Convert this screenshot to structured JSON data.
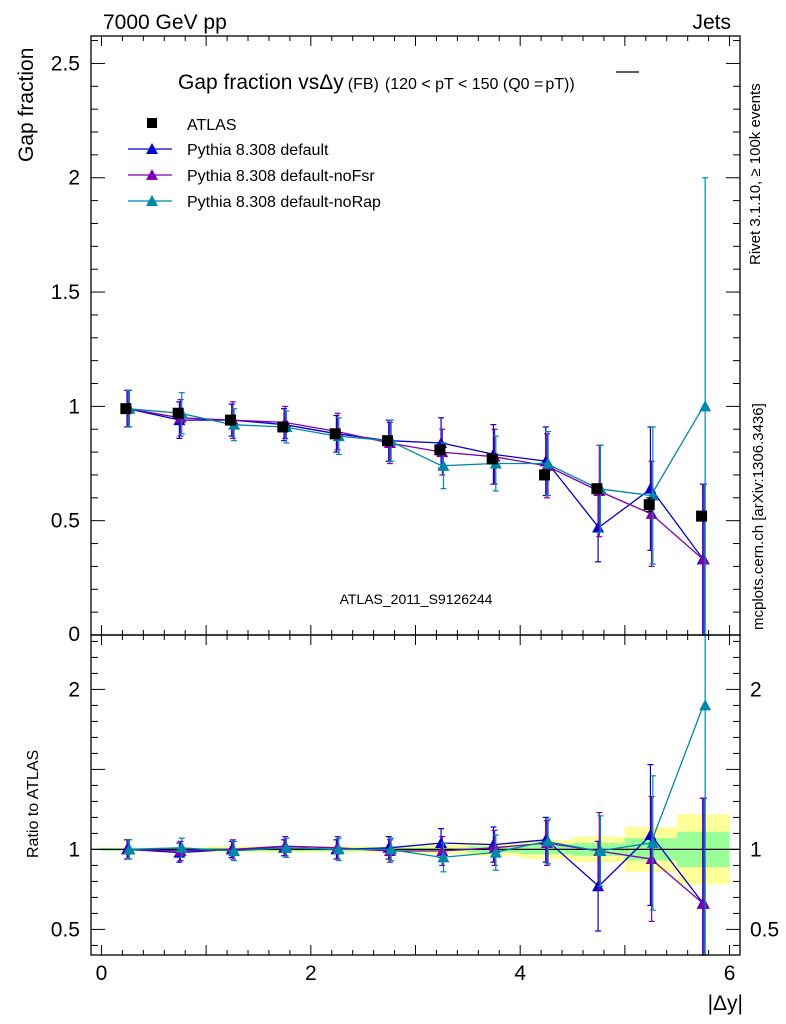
{
  "header": {
    "left": "7000 GeV pp",
    "right": "Jets"
  },
  "side_labels": {
    "rivet": "Rivet 3.1.10, ≥ 100k events",
    "mcplots": "mcplots.cern.ch [arXiv:1306.3436]"
  },
  "colors": {
    "atlas": "#000000",
    "default": "#0000cc",
    "noFsr": "#7f00b0",
    "noRap": "#0088aa",
    "band_inner": "#99ff99",
    "band_outer": "#ffff99"
  },
  "chart_data": [
    {
      "type": "scatter",
      "panel": "main",
      "title_main": "Gap fraction vsΔy",
      "title_fb": "(FB)",
      "title_range": "(120 < pT < 150 (Q0 =",
      "title_q0": "pT",
      "title_close": "))",
      "ylabel": "Gap fraction",
      "xlim": [
        -0.1,
        6.1
      ],
      "ylim": [
        0,
        2.62
      ],
      "yticks": [
        0.5,
        1,
        1.5,
        2,
        2.5
      ],
      "ytick_labels": [
        "0.5",
        "1",
        "1.5",
        "2",
        "2.5"
      ],
      "watermark": "ATLAS_2011_S9126244",
      "x": [
        0.25,
        0.75,
        1.25,
        1.75,
        2.25,
        2.75,
        3.25,
        3.75,
        4.25,
        4.75,
        5.25,
        5.75
      ],
      "series": [
        {
          "name": "ATLAS",
          "key": "atlas",
          "marker": "square",
          "values": [
            0.99,
            0.97,
            0.94,
            0.91,
            0.88,
            0.85,
            0.81,
            0.77,
            0.7,
            0.64,
            0.57,
            0.52
          ],
          "err": [
            0.01,
            0.01,
            0.01,
            0.01,
            0.01,
            0.01,
            0.01,
            0.01,
            0.01,
            0.02,
            0.03,
            0.02
          ]
        },
        {
          "name": "Pythia 8.308 default",
          "key": "default",
          "marker": "triangle",
          "values": [
            0.99,
            0.94,
            0.94,
            0.92,
            0.88,
            0.85,
            0.84,
            0.79,
            0.76,
            0.47,
            0.64,
            0.33
          ],
          "err": [
            0.08,
            0.08,
            0.07,
            0.07,
            0.08,
            0.09,
            0.11,
            0.13,
            0.15,
            0.15,
            0.27,
            0.33
          ]
        },
        {
          "name": "Pythia 8.308 default-noFsr",
          "key": "noFsr",
          "marker": "triangle",
          "values": [
            0.99,
            0.95,
            0.94,
            0.93,
            0.89,
            0.84,
            0.8,
            0.78,
            0.74,
            0.63,
            0.53,
            0.33
          ],
          "err": [
            0.08,
            0.08,
            0.08,
            0.07,
            0.08,
            0.09,
            0.1,
            0.12,
            0.14,
            0.2,
            0.23,
            0.33
          ]
        },
        {
          "name": "Pythia 8.308 default-noRap",
          "key": "noRap",
          "marker": "triangle",
          "values": [
            0.99,
            0.97,
            0.92,
            0.91,
            0.87,
            0.85,
            0.74,
            0.75,
            0.75,
            0.64,
            0.61,
            1.0
          ],
          "err": [
            0.08,
            0.09,
            0.07,
            0.07,
            0.08,
            0.09,
            0.1,
            0.12,
            0.14,
            0.19,
            0.3,
            1.0
          ]
        }
      ]
    },
    {
      "type": "scatter",
      "panel": "ratio",
      "ylabel": "Ratio to ATLAS",
      "xlabel": "|Δy|",
      "xlim": [
        -0.1,
        6.1
      ],
      "ylim": [
        0.34,
        2.34
      ],
      "xticks": [
        0,
        2,
        4,
        6
      ],
      "xtick_labels": [
        "0",
        "2",
        "4",
        "6"
      ],
      "yticks": [
        0.5,
        1,
        2
      ],
      "ytick_labels": [
        "0.5",
        "1",
        "2"
      ],
      "x": [
        0.25,
        0.75,
        1.25,
        1.75,
        2.25,
        2.75,
        3.25,
        3.75,
        4.25,
        4.75,
        5.25,
        5.75
      ],
      "band_inner": [
        0.01,
        0.01,
        0.01,
        0.01,
        0.01,
        0.01,
        0.01,
        0.02,
        0.03,
        0.04,
        0.07,
        0.11
      ],
      "band_outer": [
        0.01,
        0.01,
        0.02,
        0.02,
        0.02,
        0.02,
        0.03,
        0.04,
        0.06,
        0.08,
        0.14,
        0.22
      ],
      "series": [
        {
          "name": "Pythia 8.308 default",
          "key": "default",
          "values": [
            1.0,
            0.98,
            1.0,
            1.01,
            1.0,
            1.01,
            1.04,
            1.03,
            1.06,
            0.77,
            1.09,
            0.66
          ],
          "err": [
            0.06,
            0.06,
            0.05,
            0.05,
            0.06,
            0.07,
            0.09,
            0.11,
            0.14,
            0.28,
            0.44,
            0.66
          ]
        },
        {
          "name": "Pythia 8.308 default-noFsr",
          "key": "noFsr",
          "values": [
            1.0,
            0.99,
            1.0,
            1.02,
            1.01,
            0.99,
            0.99,
            1.01,
            1.04,
            0.99,
            0.94,
            0.66
          ],
          "err": [
            0.06,
            0.06,
            0.06,
            0.06,
            0.07,
            0.07,
            0.09,
            0.11,
            0.14,
            0.24,
            0.39,
            0.66
          ]
        },
        {
          "name": "Pythia 8.308 default-noRap",
          "key": "noRap",
          "values": [
            1.0,
            1.01,
            0.99,
            1.01,
            1.0,
            1.0,
            0.95,
            0.98,
            1.05,
            0.99,
            1.04,
            1.9
          ],
          "err": [
            0.06,
            0.06,
            0.06,
            0.06,
            0.07,
            0.07,
            0.09,
            0.11,
            0.14,
            0.22,
            0.42,
            1.9
          ]
        }
      ]
    }
  ]
}
